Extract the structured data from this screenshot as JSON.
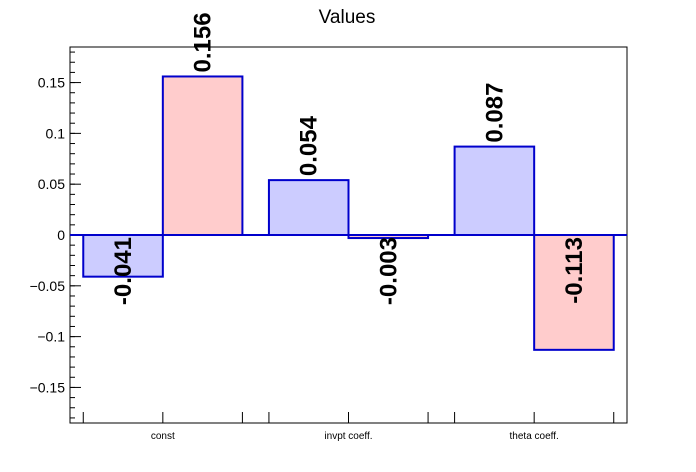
{
  "chart_data": {
    "type": "bar",
    "title": "Values",
    "categories": [
      "const",
      "invpt coeff.",
      "theta coeff."
    ],
    "series": [
      {
        "values": [
          -0.041,
          0.054,
          0.087
        ],
        "color": "#ccccff",
        "edge": "#0000cc"
      },
      {
        "values": [
          0.156,
          -0.003,
          -0.113
        ],
        "color": "#ffcccc",
        "edge": "#0000cc"
      }
    ],
    "data_labels": [
      [
        "-0.041",
        "0.054",
        "0.087"
      ],
      [
        "0.156",
        "-0.003",
        "-0.113"
      ]
    ],
    "ylim": [
      -0.185,
      0.185
    ],
    "yticks": [
      -0.15,
      -0.1,
      -0.05,
      0,
      0.05,
      0.1,
      0.15
    ],
    "ytick_labels": [
      "−0.15",
      "−0.1",
      "−0.05",
      "0",
      "0.05",
      "0.1",
      "0.15"
    ],
    "xlabel": "",
    "ylabel": "",
    "grid": false,
    "legend": "none"
  }
}
